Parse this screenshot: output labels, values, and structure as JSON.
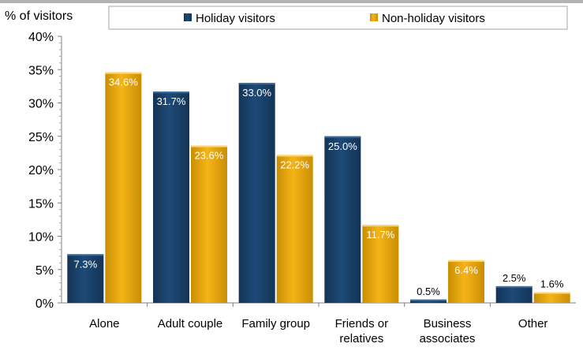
{
  "colors": {
    "holiday": "#1e4a77",
    "holiday_dark": "#133456",
    "holiday_light": "#3a6a9a",
    "nonholiday": "#f5b417",
    "nonholiday_dark": "#c98e05",
    "nonholiday_light": "#ffd66b",
    "gridline": "#d9d9d9"
  },
  "chart_data": {
    "type": "bar",
    "ylabel": "% of visitors",
    "xlabel": "",
    "ylim": [
      0,
      40
    ],
    "yticks": [
      "0%",
      "5%",
      "10%",
      "15%",
      "20%",
      "25%",
      "30%",
      "35%",
      "40%"
    ],
    "categories": [
      [
        "Alone"
      ],
      [
        "Adult couple"
      ],
      [
        "Family group"
      ],
      [
        "Friends or",
        "relatives"
      ],
      [
        "Business",
        "associates"
      ],
      [
        "Other"
      ]
    ],
    "series": [
      {
        "name": "Holiday visitors",
        "values": [
          7.3,
          31.7,
          33.0,
          25.0,
          0.5,
          2.5
        ],
        "labels": [
          "7.3%",
          "31.7%",
          "33.0%",
          "25.0%",
          "0.5%",
          "2.5%"
        ]
      },
      {
        "name": "Non-holiday visitors",
        "values": [
          34.6,
          23.6,
          22.2,
          11.7,
          6.4,
          1.6
        ],
        "labels": [
          "34.6%",
          "23.6%",
          "22.2%",
          "11.7%",
          "6.4%",
          "1.6%"
        ]
      }
    ],
    "legend_position": "top",
    "grid": false
  }
}
